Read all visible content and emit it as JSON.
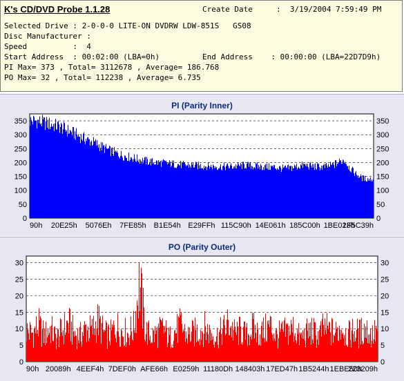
{
  "header": {
    "app_title": "K's CD/DVD Probe 1.1.28",
    "create_date_label": "Create Date",
    "create_date_value": ":  3/19/2004 7:59:49 PM",
    "selected_drive": "Selected Drive : 2-0-0-0 LITE-ON DVDRW LDW-851S   GS08",
    "disc_manufacturer": "Disc Manufacturer :",
    "speed": "Speed          :  4",
    "start_address": "Start Address  : 00:02:00 (LBA=0h)",
    "end_address": "End Address    : 00:00:00 (LBA=22D7D9h)",
    "pi_summary": "PI Max= 373 , Total= 3112678 , Average= 186.768",
    "po_summary": "PO Max= 32 , Total= 112238 , Average= 6.735"
  },
  "colors": {
    "pi_fill": "#0000ff",
    "po_fill": "#ff0000",
    "panel_bg": "#e7e7f3",
    "header_bg": "#fcfce1"
  },
  "chart_data": [
    {
      "type": "area",
      "title": "PI (Parity Inner)",
      "ylim": [
        0,
        375
      ],
      "y_ticks": [
        0,
        50,
        100,
        150,
        200,
        250,
        300,
        350
      ],
      "x_tick_labels": [
        "90h",
        "20E25h",
        "5076Eh",
        "7FE85h",
        "B1E54h",
        "E29FFh",
        "115C90h",
        "14E061h",
        "185C00h",
        "1BE023h",
        "1F5C39h"
      ],
      "grid": "dashed horizontal",
      "series": [
        {
          "values": [
            350,
            350,
            345,
            340,
            335,
            330,
            320,
            310,
            300,
            290,
            280,
            272,
            260,
            250,
            240,
            232,
            225,
            220,
            215,
            210,
            205,
            202,
            200,
            198,
            196,
            194,
            192,
            190,
            190,
            188,
            188,
            186,
            186,
            185,
            185,
            186,
            188,
            190,
            188,
            186,
            185,
            184,
            183,
            180,
            178,
            182,
            186,
            190,
            188,
            185,
            184,
            185,
            190,
            200,
            210,
            180,
            160,
            145,
            140,
            140
          ]
        }
      ]
    },
    {
      "type": "bar",
      "title": "PO (Parity Outer)",
      "ylim": [
        0,
        32
      ],
      "y_ticks": [
        0,
        5,
        10,
        15,
        20,
        25,
        30
      ],
      "x_tick_labels": [
        "90h",
        "20089h",
        "4EEF4h",
        "7DEF0h",
        "AFE66h",
        "E0259h",
        "11180Dh",
        "148403h",
        "17ED47h",
        "1B5244h",
        "1EBE50h",
        "223209h"
      ],
      "grid": "dashed horizontal",
      "series": [
        {
          "values": [
            12,
            11,
            14,
            10,
            13,
            9,
            12,
            15,
            11,
            10,
            13,
            12,
            16,
            11,
            10,
            14,
            12,
            11,
            13,
            31,
            12,
            10,
            11,
            13,
            9,
            12,
            14,
            10,
            11,
            12,
            13,
            11,
            10,
            12,
            15,
            11,
            12,
            10,
            13,
            11,
            12,
            14,
            10,
            11,
            12,
            13,
            9,
            11,
            12,
            10,
            13,
            12,
            11,
            14,
            10,
            12,
            11,
            13,
            10,
            12
          ]
        }
      ]
    }
  ]
}
